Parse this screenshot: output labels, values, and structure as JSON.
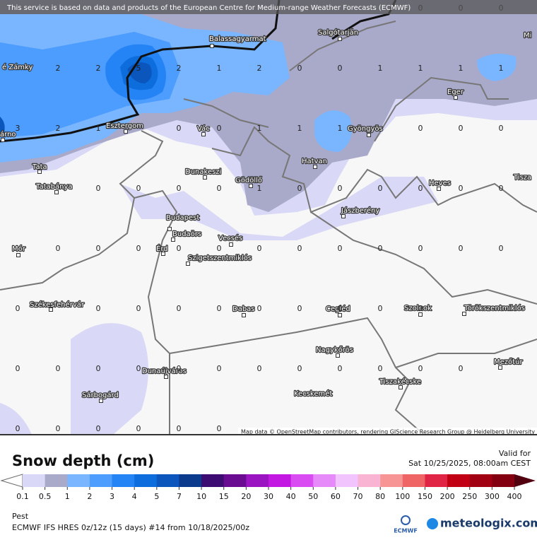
{
  "banner": "This service is based on data and products of the European Centre for Medium-range Weather Forecasts (ECMWF)",
  "attribution": "Map data © OpenStreetMap contributors, rendering GIScience Research Group @ Heidelberg University",
  "cities": [
    "é Zámky",
    "Balassagyarmat",
    "Salgótarján",
    "Mi",
    "Eger",
    "árno",
    "Esztergom",
    "Vác",
    "Gyöngyös",
    "Tata",
    "Hatvan",
    "Dunakeszi",
    "Gödöllő",
    "Heves",
    "Tisza",
    "Tatabánya",
    "Jászberény",
    "Budapest",
    "Budaörs",
    "Vecsés",
    "Mór",
    "Érd",
    "Szigetszentmiklós",
    "Székesfehérvár",
    "Dabas",
    "Cegléd",
    "Szolnok",
    "Törökszentmiklós",
    "Nagykőrös",
    "Mezőtúr",
    "Dunaújváros",
    "Tiszakécske",
    "Kecskemét",
    "Sárbogárd"
  ],
  "grid": {
    "rows": [
      [
        null,
        null,
        null,
        null,
        null,
        null,
        null,
        null,
        null,
        null,
        0,
        0,
        0
      ],
      [
        null,
        2,
        2,
        5,
        2,
        1,
        2,
        0,
        0,
        1,
        1,
        1,
        1
      ],
      [
        3,
        2,
        1,
        null,
        0,
        0,
        1,
        1,
        1,
        null,
        0,
        0,
        0
      ],
      [
        null,
        null,
        0,
        0,
        0,
        0,
        1,
        0,
        0,
        0,
        0,
        0,
        0
      ],
      [
        null,
        0,
        0,
        0,
        0,
        0,
        0,
        0,
        0,
        0,
        0,
        0,
        0
      ],
      [
        0,
        null,
        0,
        0,
        0,
        0,
        0,
        0,
        0,
        0,
        0,
        null,
        null
      ],
      [
        0,
        0,
        0,
        0,
        0,
        0,
        0,
        0,
        0,
        0,
        0,
        0,
        null
      ],
      [
        0,
        0,
        0,
        0,
        0,
        0,
        null,
        null,
        null,
        null,
        null,
        null,
        null
      ]
    ]
  },
  "legend": {
    "title": "Snow depth (cm)",
    "ticks": [
      0.1,
      0.5,
      1,
      2,
      3,
      4,
      5,
      7,
      10,
      15,
      20,
      30,
      40,
      50,
      60,
      70,
      80,
      100,
      150,
      200,
      250,
      300,
      400
    ],
    "colors": [
      "#d9d9f7",
      "#a9a9c9",
      "#7ab6ff",
      "#4d9cff",
      "#2484f5",
      "#0e6ddc",
      "#0a56bd",
      "#093a8c",
      "#3d0c72",
      "#6a0c92",
      "#9a14c2",
      "#c218e2",
      "#d84cf2",
      "#e58af8",
      "#f2c4fd",
      "#f8b4d2",
      "#f79494",
      "#ef6464",
      "#df2444",
      "#c10014",
      "#a10012",
      "#82000f"
    ],
    "arrow_colors": [
      "#ffffff",
      "#520010"
    ]
  },
  "valid_label": "Valid for",
  "valid_time": "Sat 10/25/2025, 08:00am CEST",
  "region": "Pest",
  "model": "ECMWF IFS HRES 0z/12z (15 days) #14 from  10/18/2025/00z",
  "logo_left": "ECMWF",
  "logo_right": "meteologix.com"
}
